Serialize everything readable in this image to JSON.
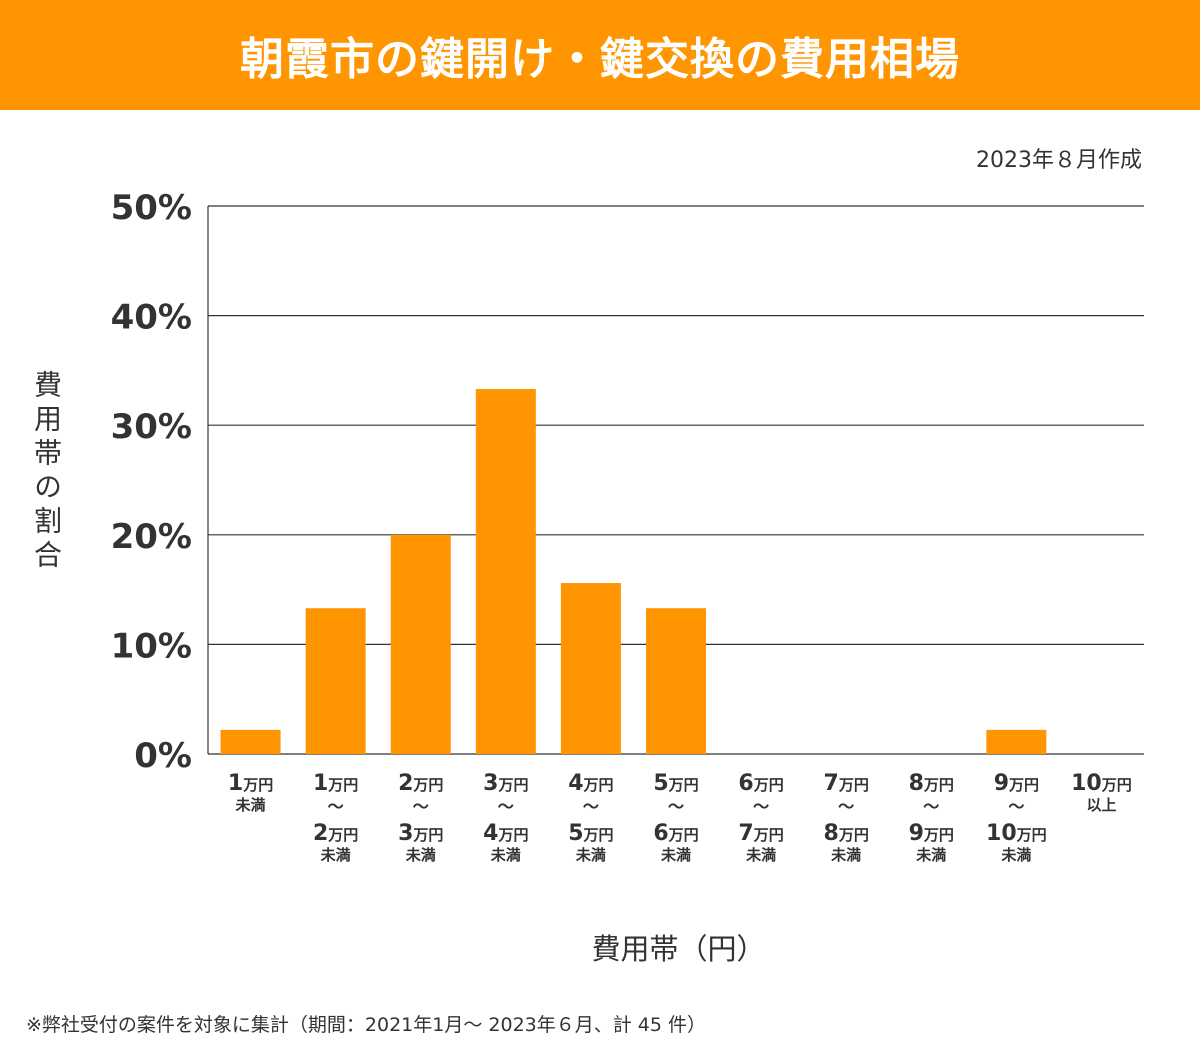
{
  "header": {
    "title": "朝霞市の鍵開け・鍵交換の費用相場"
  },
  "meta": {
    "date": "2023年８月作成"
  },
  "footnote": "※弊社受付の案件を対象に集計（期間：2021年1月～ 2023年６月、計 45 件）",
  "colors": {
    "accent": "#ff9500",
    "bar": "#ff9500",
    "grid": "#333333"
  },
  "chart_data": {
    "type": "bar",
    "title": "朝霞市の鍵開け・鍵交換の費用相場",
    "ylabel": "費用帯の割合",
    "xlabel": "費用帯（円）",
    "ylim": [
      0,
      50
    ],
    "yticks": [
      "0%",
      "10%",
      "20%",
      "30%",
      "40%",
      "50%"
    ],
    "grid": true,
    "categories": [
      "1万円未満",
      "1万円～2万円未満",
      "2万円～3万円未満",
      "3万円～4万円未満",
      "4万円～5万円未満",
      "5万円～6万円未満",
      "6万円～7万円未満",
      "7万円～8万円未満",
      "8万円～9万円未満",
      "9万円～10万円未満",
      "10万円以上"
    ],
    "values": [
      2.2,
      13.3,
      20.0,
      33.3,
      15.6,
      13.3,
      0,
      0,
      0,
      2.2,
      0
    ]
  }
}
